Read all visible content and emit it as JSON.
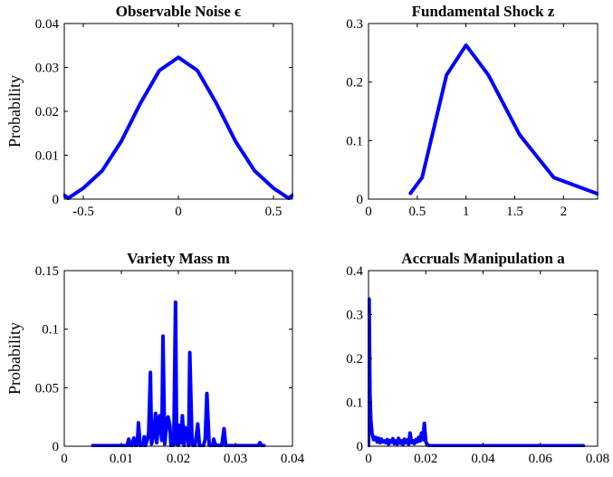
{
  "chart_data": [
    {
      "type": "line",
      "title": "Observable Noise ϵ",
      "xlabel": "",
      "ylabel": "Probability",
      "xlim": [
        -0.6,
        0.6
      ],
      "ylim": [
        0,
        0.04
      ],
      "xticks": [
        -0.5,
        0,
        0.5
      ],
      "xtick_labels": [
        "-0.5",
        "0",
        "0.5"
      ],
      "yticks": [
        0,
        0.01,
        0.02,
        0.03,
        0.04
      ],
      "ytick_labels": [
        "0",
        "0.01",
        "0.02",
        "0.03",
        "0.04"
      ],
      "grid": false,
      "color": "#0000ff",
      "series": [
        {
          "x": [
            -0.6,
            -0.58,
            -0.5,
            -0.4,
            -0.3,
            -0.2,
            -0.1,
            0,
            0.1,
            0.2,
            0.3,
            0.4,
            0.5,
            0.58,
            0.6
          ],
          "y": [
            0.0009,
            0.0002,
            0.0025,
            0.0065,
            0.0132,
            0.0218,
            0.0293,
            0.0323,
            0.0293,
            0.0218,
            0.0132,
            0.0065,
            0.0025,
            0.0002,
            0.0009
          ]
        }
      ]
    },
    {
      "type": "line",
      "title": "Fundamental Shock z",
      "xlabel": "",
      "ylabel": "",
      "xlim": [
        0,
        2.35
      ],
      "ylim": [
        0,
        0.3
      ],
      "xticks": [
        0,
        0.5,
        1,
        1.5,
        2
      ],
      "xtick_labels": [
        "0",
        "0.5",
        "1",
        "1.5",
        "2"
      ],
      "yticks": [
        0,
        0.1,
        0.2,
        0.3
      ],
      "ytick_labels": [
        "0",
        "0.1",
        "0.2",
        "0.3"
      ],
      "grid": false,
      "color": "#0000ff",
      "series": [
        {
          "x": [
            0.43,
            0.55,
            0.8,
            1.0,
            1.23,
            1.55,
            1.9,
            2.35
          ],
          "y": [
            0.01,
            0.037,
            0.212,
            0.263,
            0.212,
            0.11,
            0.037,
            0.009
          ]
        }
      ]
    },
    {
      "type": "line",
      "title": "Variety Mass m",
      "xlabel": "",
      "ylabel": "Probability",
      "xlim": [
        0,
        0.04
      ],
      "ylim": [
        0,
        0.15
      ],
      "xticks": [
        0,
        0.01,
        0.02,
        0.03,
        0.04
      ],
      "xtick_labels": [
        "0",
        "0.01",
        "0.02",
        "0.03",
        "0.04"
      ],
      "yticks": [
        0,
        0.05,
        0.1,
        0.15
      ],
      "ytick_labels": [
        "0",
        "0.05",
        "0.1",
        "0.15"
      ],
      "grid": false,
      "color": "#0000ff",
      "series": [
        {
          "x": [
            0.005,
            0.011,
            0.0113,
            0.0116,
            0.0118,
            0.0122,
            0.0125,
            0.0128,
            0.013,
            0.0133,
            0.0136,
            0.0139,
            0.014,
            0.0142,
            0.0146,
            0.0148,
            0.0151,
            0.0153,
            0.0157,
            0.016,
            0.0162,
            0.0165,
            0.0167,
            0.0171,
            0.0173,
            0.0176,
            0.0178,
            0.0182,
            0.0185,
            0.0187,
            0.019,
            0.0192,
            0.0195,
            0.0197,
            0.02,
            0.0202,
            0.0205,
            0.0207,
            0.021,
            0.0212,
            0.0215,
            0.0218,
            0.022,
            0.0224,
            0.0226,
            0.0229,
            0.0231,
            0.0234,
            0.0237,
            0.024,
            0.0244,
            0.0247,
            0.025,
            0.0254,
            0.0257,
            0.026,
            0.0262,
            0.0265,
            0.0268,
            0.0272,
            0.0276,
            0.028,
            0.0283,
            0.0287,
            0.029,
            0.0293,
            0.0296,
            0.0299,
            0.0301,
            0.0303,
            0.031,
            0.034,
            0.0343,
            0.0346,
            0.035
          ],
          "y": [
            0.0005,
            0.0005,
            0.006,
            0.0005,
            0.0005,
            0.007,
            0.0005,
            0.001,
            0.02,
            0.0005,
            0.0005,
            0.003,
            0.008,
            0.0005,
            0.006,
            0.012,
            0.063,
            0.002,
            0.01,
            0.028,
            0.003,
            0.018,
            0.026,
            0.005,
            0.094,
            0.002,
            0.012,
            0.025,
            0.018,
            0.0005,
            0.0005,
            0.002,
            0.123,
            0.002,
            0.0005,
            0.018,
            0.003,
            0.026,
            0.0005,
            0.016,
            0.012,
            0.0005,
            0.08,
            0.002,
            0.0005,
            0.0005,
            0.007,
            0.019,
            0.0005,
            0.0005,
            0.0005,
            0.006,
            0.045,
            0.001,
            0.0005,
            0.0005,
            0.006,
            0.0005,
            0.001,
            0.0005,
            0.0005,
            0.015,
            0.0005,
            0.0005,
            0.0005,
            0.0005,
            0.0005,
            0.0005,
            0.0005,
            0.0005,
            0.0005,
            0.0005,
            0.003,
            0.0005,
            0.0005
          ]
        }
      ]
    },
    {
      "type": "line",
      "title": "Accruals Manipulation a",
      "xlabel": "",
      "ylabel": "",
      "xlim": [
        0,
        0.08
      ],
      "ylim": [
        0,
        0.4
      ],
      "xticks": [
        0,
        0.02,
        0.04,
        0.06,
        0.08
      ],
      "xtick_labels": [
        "0",
        "0.02",
        "0.04",
        "0.06",
        "0.08"
      ],
      "yticks": [
        0,
        0.1,
        0.2,
        0.3,
        0.4
      ],
      "ytick_labels": [
        "0",
        "0.1",
        "0.2",
        "0.3",
        "0.4"
      ],
      "grid": false,
      "color": "#0000ff",
      "series": [
        {
          "x": [
            0,
            0.0002,
            0.0005,
            0.0008,
            0.0012,
            0.0018,
            0.0025,
            0.003,
            0.0035,
            0.004,
            0.0045,
            0.005,
            0.0055,
            0.006,
            0.0065,
            0.007,
            0.0075,
            0.008,
            0.0085,
            0.009,
            0.0095,
            0.01,
            0.0105,
            0.011,
            0.0115,
            0.012,
            0.0125,
            0.013,
            0.0135,
            0.014,
            0.0145,
            0.015,
            0.0155,
            0.016,
            0.0165,
            0.017,
            0.0175,
            0.018,
            0.0185,
            0.019,
            0.0195,
            0.02,
            0.0205,
            0.021,
            0.0215,
            0.022,
            0.03,
            0.04,
            0.05,
            0.06,
            0.075
          ],
          "y": [
            0.0,
            0.335,
            0.12,
            0.06,
            0.03,
            0.015,
            0.02,
            0.01,
            0.018,
            0.008,
            0.016,
            0.01,
            0.012,
            0.008,
            0.015,
            0.005,
            0.013,
            0.009,
            0.017,
            0.006,
            0.012,
            0.005,
            0.018,
            0.007,
            0.012,
            0.004,
            0.016,
            0.008,
            0.014,
            0.005,
            0.03,
            0.008,
            0.012,
            0.006,
            0.015,
            0.01,
            0.02,
            0.012,
            0.03,
            0.015,
            0.052,
            0.01,
            0.004,
            0.002,
            0.001,
            0.001,
            0.001,
            0.001,
            0.001,
            0.001,
            0.001
          ]
        }
      ]
    }
  ]
}
